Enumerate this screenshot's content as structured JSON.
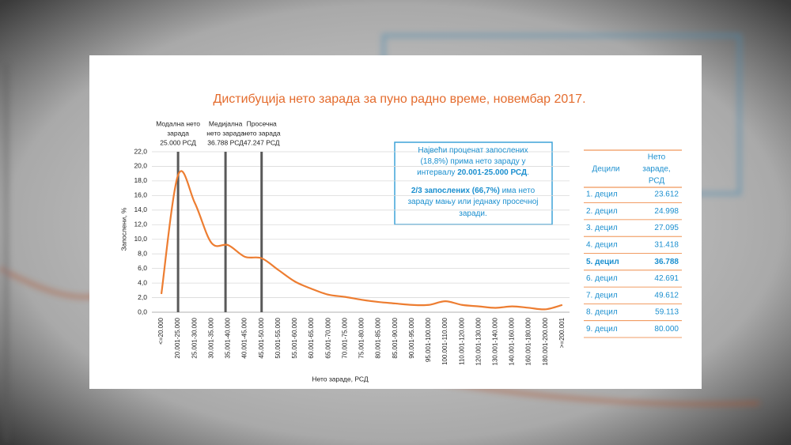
{
  "chart_data": {
    "type": "line",
    "title": "Дистибуција нето зарада за пуно радно време, новембар 2017.",
    "y_label": "Запослени, %",
    "x_label": "Нето зараде, РСД",
    "categories": [
      "<=20.000",
      "20.001-25.000",
      "25.001-30.000",
      "30.001-35.000",
      "35.001-40.000",
      "40.001-45.000",
      "45.001-50.000",
      "50.001-55.000",
      "55.001-60.000",
      "60.001-65.000",
      "65.001-70.000",
      "70.001-75.000",
      "75.001-80.000",
      "80.001-85.000",
      "85.001-90.000",
      "90.001-95.000",
      "95.001-100.000",
      "100.001-110.000",
      "110.001-120.000",
      "120.001-130.000",
      "130.001-140.000",
      "140.001-160.000",
      "160.001-180.000",
      "180.001-200.000",
      ">=200.001"
    ],
    "values": [
      2.5,
      18.8,
      15.0,
      9.5,
      9.2,
      7.6,
      7.4,
      5.8,
      4.2,
      3.2,
      2.4,
      2.1,
      1.7,
      1.4,
      1.2,
      1.0,
      1.0,
      1.5,
      1.0,
      0.8,
      0.6,
      0.8,
      0.6,
      0.4,
      1.0
    ],
    "color": "#ed7d31",
    "ylim": [
      0,
      22
    ],
    "yticks": [
      {
        "value": 0,
        "label": "0,0"
      },
      {
        "value": 2,
        "label": "2,0"
      },
      {
        "value": 4,
        "label": "4,0"
      },
      {
        "value": 6,
        "label": "6,0"
      },
      {
        "value": 8,
        "label": "8,0"
      },
      {
        "value": 10,
        "label": "10,0"
      },
      {
        "value": 12,
        "label": "12,0"
      },
      {
        "value": 14,
        "label": "14,0"
      },
      {
        "value": 16,
        "label": "16,0"
      },
      {
        "value": 18,
        "label": "18,0"
      },
      {
        "value": 20,
        "label": "20,0"
      },
      {
        "value": 22,
        "label": "22,0"
      }
    ],
    "grid": true,
    "markers": [
      {
        "lines": [
          "Модална нето",
          "зарада",
          "25.000 РСД"
        ]
      },
      {
        "lines": [
          "Медијална",
          "нето зарада",
          "36.788 РСД"
        ]
      },
      {
        "lines": [
          "Просечна",
          "нето зарада",
          "47.247 РСД"
        ]
      }
    ],
    "info_box": [
      [
        {
          "text": "Највећи проценат запослених"
        }
      ],
      [
        {
          "text": "(18,8%) прима нето зараду у"
        }
      ],
      [
        {
          "text": "интервалу "
        },
        {
          "text": "20.001-25.000 РСД",
          "bold": true
        },
        {
          "text": "."
        }
      ],
      [
        {
          "text": "2/3 запослених (66,7%)",
          "bold": true
        },
        {
          "text": " има нето"
        }
      ],
      [
        {
          "text": "зараду мању или једнаку просечној"
        }
      ],
      [
        {
          "text": "заради."
        }
      ]
    ],
    "table": {
      "header": [
        "Децили",
        [
          "Нето",
          "зараде,",
          "РСД"
        ]
      ],
      "rows": [
        [
          "1. децил",
          "23.612"
        ],
        [
          "2. децил",
          "24.998"
        ],
        [
          "3. децил",
          "27.095"
        ],
        [
          "4. децил",
          "31.418"
        ],
        [
          "5. децил",
          "36.788"
        ],
        [
          "6. децил",
          "42.691"
        ],
        [
          "7. децил",
          "49.612"
        ],
        [
          "8. децил",
          "59.113"
        ],
        [
          "9. децил",
          "80.000"
        ]
      ],
      "bold_row": 4
    }
  }
}
